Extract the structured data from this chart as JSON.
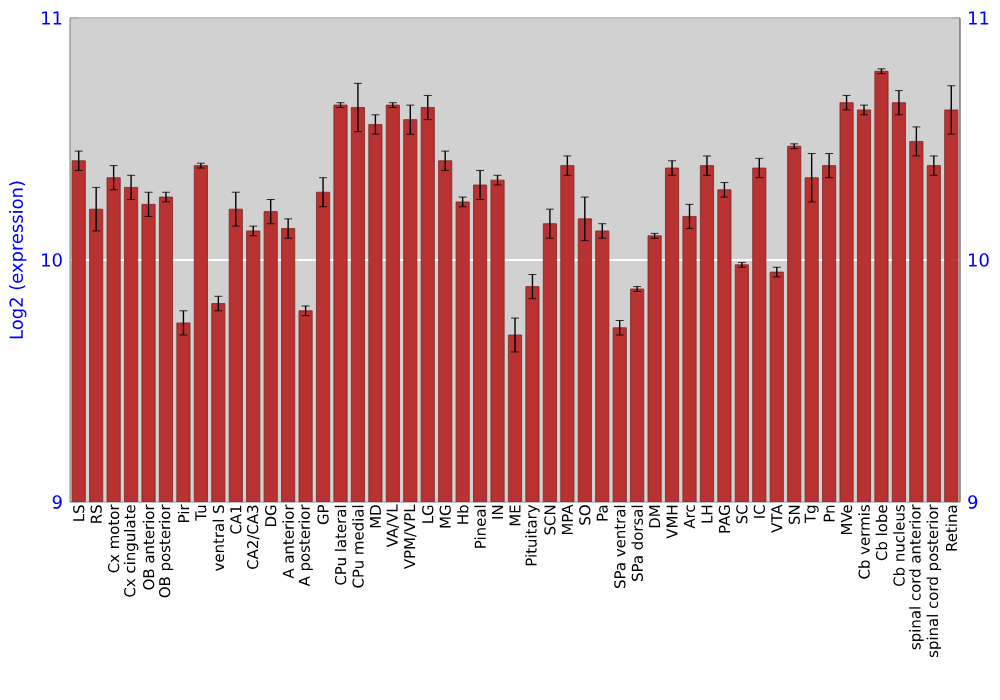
{
  "chart_data": {
    "type": "bar",
    "ylabel": "Log2 (expression)",
    "categories": [
      "LS",
      "RS",
      "Cx motor",
      "Cx cingulate",
      "OB anterior",
      "OB posterior",
      "Pir",
      "Tu",
      "ventral S",
      "CA1",
      "CA2/CA3",
      "DG",
      "A anterior",
      "A posterior",
      "GP",
      "CPu lateral",
      "CPu medial",
      "MD",
      "VA/VL",
      "VPM/VPL",
      "LG",
      "MG",
      "Hb",
      "Pineal",
      "IN",
      "ME",
      "Pituitary",
      "SCN",
      "MPA",
      "SO",
      "Pa",
      "SPa ventral",
      "SPa dorsal",
      "DM",
      "VMH",
      "Arc",
      "LH",
      "PAG",
      "SC",
      "IC",
      "VTA",
      "SN",
      "Tg",
      "Pn",
      "MVe",
      "Cb vermis",
      "Cb lobe",
      "Cb nucleus",
      "spinal cord anterior",
      "spinal cord posterior",
      "Retina"
    ],
    "values": [
      10.41,
      10.21,
      10.34,
      10.3,
      10.23,
      10.26,
      9.74,
      10.39,
      9.82,
      10.21,
      10.12,
      10.2,
      10.13,
      9.79,
      10.28,
      10.64,
      10.63,
      10.56,
      10.64,
      10.58,
      10.63,
      10.41,
      10.24,
      10.31,
      10.33,
      9.69,
      9.89,
      10.15,
      10.39,
      10.17,
      10.12,
      9.72,
      9.88,
      10.1,
      10.38,
      10.18,
      10.39,
      10.29,
      9.98,
      10.38,
      9.95,
      10.47,
      10.34,
      10.39,
      10.65,
      10.62,
      10.78,
      10.65,
      10.49,
      10.39,
      10.62
    ],
    "errors": [
      0.04,
      0.09,
      0.05,
      0.05,
      0.05,
      0.02,
      0.05,
      0.01,
      0.03,
      0.07,
      0.02,
      0.05,
      0.04,
      0.02,
      0.06,
      0.01,
      0.1,
      0.04,
      0.01,
      0.06,
      0.05,
      0.04,
      0.02,
      0.06,
      0.02,
      0.07,
      0.05,
      0.06,
      0.04,
      0.09,
      0.03,
      0.03,
      0.01,
      0.01,
      0.03,
      0.05,
      0.04,
      0.03,
      0.01,
      0.04,
      0.02,
      0.01,
      0.1,
      0.05,
      0.03,
      0.02,
      0.01,
      0.05,
      0.06,
      0.04,
      0.1
    ],
    "color": "#b83232",
    "ylim": [
      9,
      11
    ],
    "yticks": [
      9,
      10,
      11
    ],
    "y2lim": [
      9,
      11
    ],
    "y2ticks": [
      9,
      10,
      11
    ],
    "grid": "y"
  }
}
